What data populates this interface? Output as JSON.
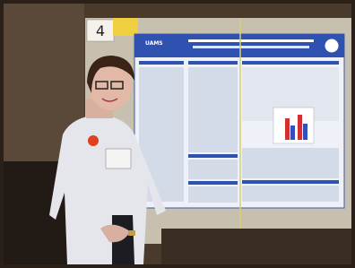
{
  "sign": {
    "number": "4"
  },
  "poster": {
    "logo": "UAMS"
  }
}
